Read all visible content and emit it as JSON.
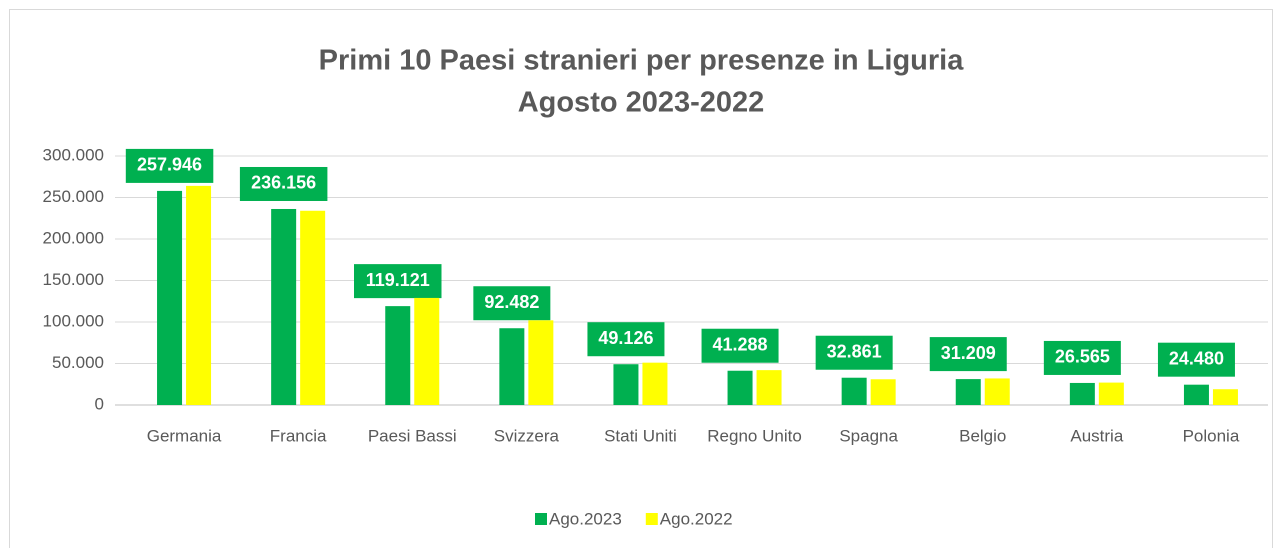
{
  "chart_data": {
    "type": "bar",
    "title": [
      "Primi 10 Paesi stranieri per presenze in Liguria",
      "Agosto 2023-2022"
    ],
    "categories": [
      "Germania",
      "Francia",
      "Paesi Bassi",
      "Svizzera",
      "Stati Uniti",
      "Regno Unito",
      "Spagna",
      "Belgio",
      "Austria",
      "Polonia"
    ],
    "series": [
      {
        "name": "Ago.2023",
        "color": "#00b050",
        "values": [
          257946,
          236156,
          119121,
          92482,
          49126,
          41288,
          32861,
          31209,
          26565,
          24480
        ],
        "value_labels": [
          "257.946",
          "236.156",
          "119.121",
          "92.482",
          "49.126",
          "41.288",
          "32.861",
          "31.209",
          "26.565",
          "24.480"
        ]
      },
      {
        "name": "Ago.2022",
        "color": "#ffff00",
        "values": [
          264000,
          234000,
          129000,
          102000,
          51000,
          42000,
          31000,
          32000,
          27000,
          19000
        ]
      }
    ],
    "ylim": [
      0,
      300000
    ],
    "yticks": [
      0,
      {
        "value": 50000,
        "label": "50.000"
      },
      {
        "value": 100000,
        "label": "100.000"
      },
      {
        "value": 150000,
        "label": "150.000"
      },
      {
        "value": 200000,
        "label": "200.000"
      },
      {
        "value": 250000,
        "label": "250.000"
      },
      {
        "value": 300000,
        "label": "300.000"
      }
    ],
    "grid": true,
    "legend": "bottom"
  }
}
